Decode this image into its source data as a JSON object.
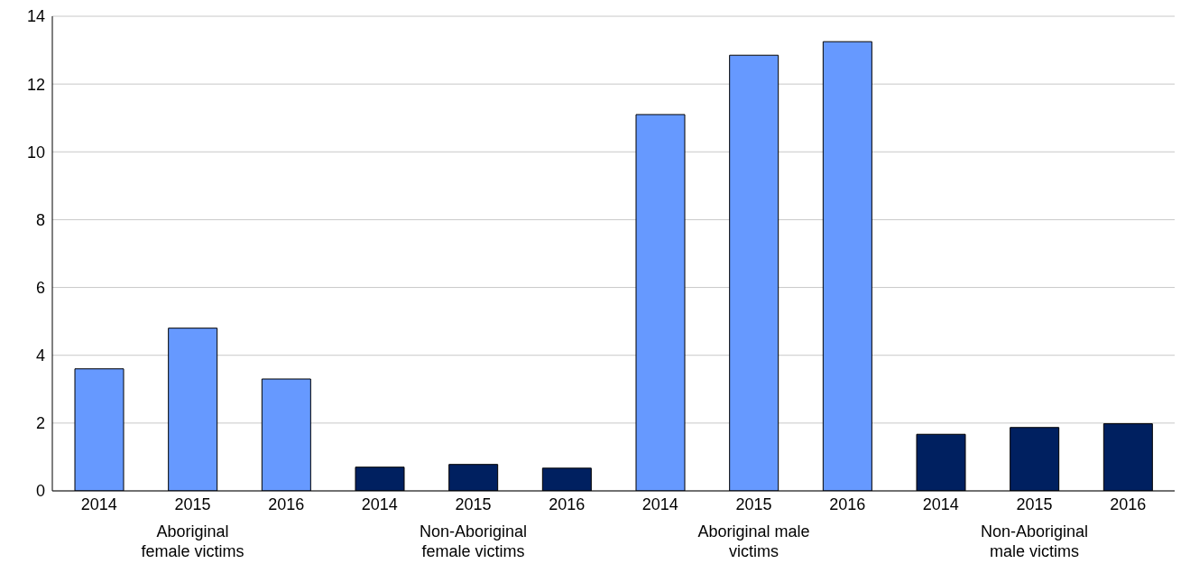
{
  "chart_data": {
    "type": "bar",
    "categories": [
      "2014",
      "2015",
      "2016",
      "2014",
      "2015",
      "2016",
      "2014",
      "2015",
      "2016",
      "2014",
      "2015",
      "2016"
    ],
    "values": [
      3.6,
      4.8,
      3.3,
      0.7,
      0.78,
      0.67,
      11.1,
      12.85,
      13.25,
      1.67,
      1.87,
      1.98
    ],
    "colors": [
      "#6699ff",
      "#6699ff",
      "#6699ff",
      "#002060",
      "#002060",
      "#002060",
      "#6699ff",
      "#6699ff",
      "#6699ff",
      "#002060",
      "#002060",
      "#002060"
    ],
    "ylim": [
      0,
      14
    ],
    "yticks": [
      0,
      2,
      4,
      6,
      8,
      10,
      12,
      14
    ],
    "grid": "y",
    "annotations": [
      "Aboriginal female victims",
      "Non-Aboriginal female victims",
      "Aboriginal male victims",
      "Non-Aboriginal male victims"
    ]
  }
}
